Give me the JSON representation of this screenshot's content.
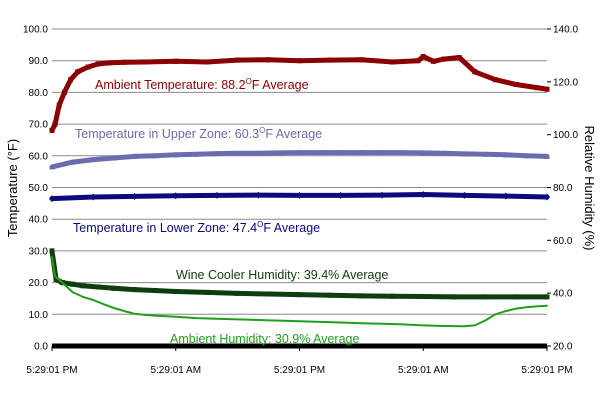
{
  "chart_data": {
    "type": "line",
    "title": "",
    "xlabel": "",
    "ylabel": "Temperature (°F)",
    "ylabel_right": "Relative Humidity (%)",
    "ylim": [
      0,
      100
    ],
    "ylim_right": [
      20,
      140
    ],
    "yticks": [
      "0.0",
      "10.0",
      "20.0",
      "30.0",
      "40.0",
      "50.0",
      "60.0",
      "70.0",
      "80.0",
      "90.0",
      "100.0"
    ],
    "yticks_right": [
      "20.0",
      "40.0",
      "60.0",
      "80.0",
      "100.0",
      "120.0",
      "140.0"
    ],
    "xticks": [
      "5:29:01 PM",
      "5:29:01 AM",
      "5:29:01 PM",
      "5:29:01 AM",
      "5:29:01 PM"
    ],
    "x_range": [
      0,
      48
    ],
    "x_unit": "hours",
    "grid": true,
    "legend": "none",
    "series": [
      {
        "axis": "left",
        "color": "#8b0000",
        "marker": "square",
        "x": [
          0,
          0.3,
          0.7,
          1.2,
          1.8,
          2.5,
          3.5,
          4.5,
          5.5,
          7,
          9,
          12,
          15,
          18,
          21,
          24,
          27,
          30,
          33,
          35.5,
          36,
          37,
          38,
          39.5,
          41,
          43,
          45,
          47,
          48
        ],
        "values": [
          68,
          70,
          76,
          80,
          84,
          86.5,
          88,
          89,
          89.3,
          89.5,
          89.6,
          89.8,
          89.6,
          90.2,
          90.3,
          90,
          90.2,
          90.3,
          89.6,
          90,
          91.3,
          89.8,
          90.5,
          91,
          86.5,
          84,
          82.5,
          81.5,
          81
        ]
      },
      {
        "axis": "left",
        "color": "#6b6bb0",
        "marker": "triangle",
        "x": [
          0,
          2,
          4,
          6,
          8,
          10,
          12,
          14,
          16,
          18,
          20,
          22,
          24,
          26,
          28,
          30,
          32,
          34,
          36,
          38,
          40,
          42,
          44,
          46,
          48
        ],
        "values": [
          56.5,
          58,
          58.8,
          59.3,
          59.8,
          60,
          60.3,
          60.5,
          60.7,
          60.8,
          60.8,
          60.9,
          61,
          61,
          61,
          61,
          61,
          61,
          60.9,
          60.8,
          60.6,
          60.5,
          60.3,
          60,
          59.8
        ]
      },
      {
        "axis": "left",
        "color": "#0b0b7d",
        "marker": "diamond",
        "x": [
          0,
          4,
          8,
          12,
          16,
          20,
          24,
          28,
          32,
          36,
          40,
          44,
          48
        ],
        "values": [
          46.5,
          47,
          47.2,
          47.4,
          47.5,
          47.6,
          47.5,
          47.5,
          47.6,
          47.8,
          47.5,
          47.3,
          47
        ]
      },
      {
        "axis": "left",
        "color": "#0f3d0f",
        "marker": "square",
        "x": [
          0,
          0.4,
          1,
          2,
          3,
          4.5,
          6,
          8,
          10,
          12,
          15,
          18,
          21,
          24,
          27,
          30,
          33,
          36,
          39,
          42,
          45,
          48
        ],
        "values": [
          30,
          21,
          20,
          19.5,
          19,
          18.6,
          18.2,
          17.8,
          17.5,
          17.2,
          16.9,
          16.6,
          16.4,
          16.2,
          16,
          15.8,
          15.7,
          15.6,
          15.5,
          15.5,
          15.5,
          15.5
        ]
      },
      {
        "axis": "left",
        "color": "#1f9e1f",
        "marker": "none",
        "x": [
          0,
          0.3,
          1,
          2,
          3,
          4,
          5,
          6,
          7,
          8,
          9,
          10,
          12,
          14,
          16,
          18,
          20,
          22,
          24,
          26,
          28,
          30,
          32,
          34,
          36,
          38,
          40,
          41,
          42,
          43,
          44,
          45,
          46,
          47,
          48
        ],
        "values": [
          28,
          22,
          20,
          17,
          15.5,
          14.5,
          13.2,
          12,
          11,
          10.2,
          9.8,
          9.6,
          9.2,
          8.8,
          8.6,
          8.4,
          8.2,
          8,
          7.8,
          7.6,
          7.4,
          7.2,
          7,
          6.8,
          6.5,
          6.3,
          6.2,
          6.5,
          8,
          10,
          11,
          11.8,
          12.2,
          12.5,
          12.7
        ]
      }
    ],
    "annotations": [
      {
        "text": "Ambient Temperature: 88.2",
        "sup": "O",
        "suffix": "F Average",
        "color": "#8b0000"
      },
      {
        "text": "Temperature in Upper Zone: 60.3",
        "sup": "O",
        "suffix": "F Average",
        "color": "#6b6bb0"
      },
      {
        "text": "Temperature in Lower Zone: 47.4",
        "sup": "O",
        "suffix": "F Average",
        "color": "#0b0b7d"
      },
      {
        "text": "Wine Cooler Humidity: 39.4% Average",
        "sup": "",
        "suffix": "",
        "color": "#0f3d0f"
      },
      {
        "text": "Ambient Humidity: 30.9% Average",
        "sup": "",
        "suffix": "",
        "color": "#1f9e1f"
      }
    ]
  }
}
